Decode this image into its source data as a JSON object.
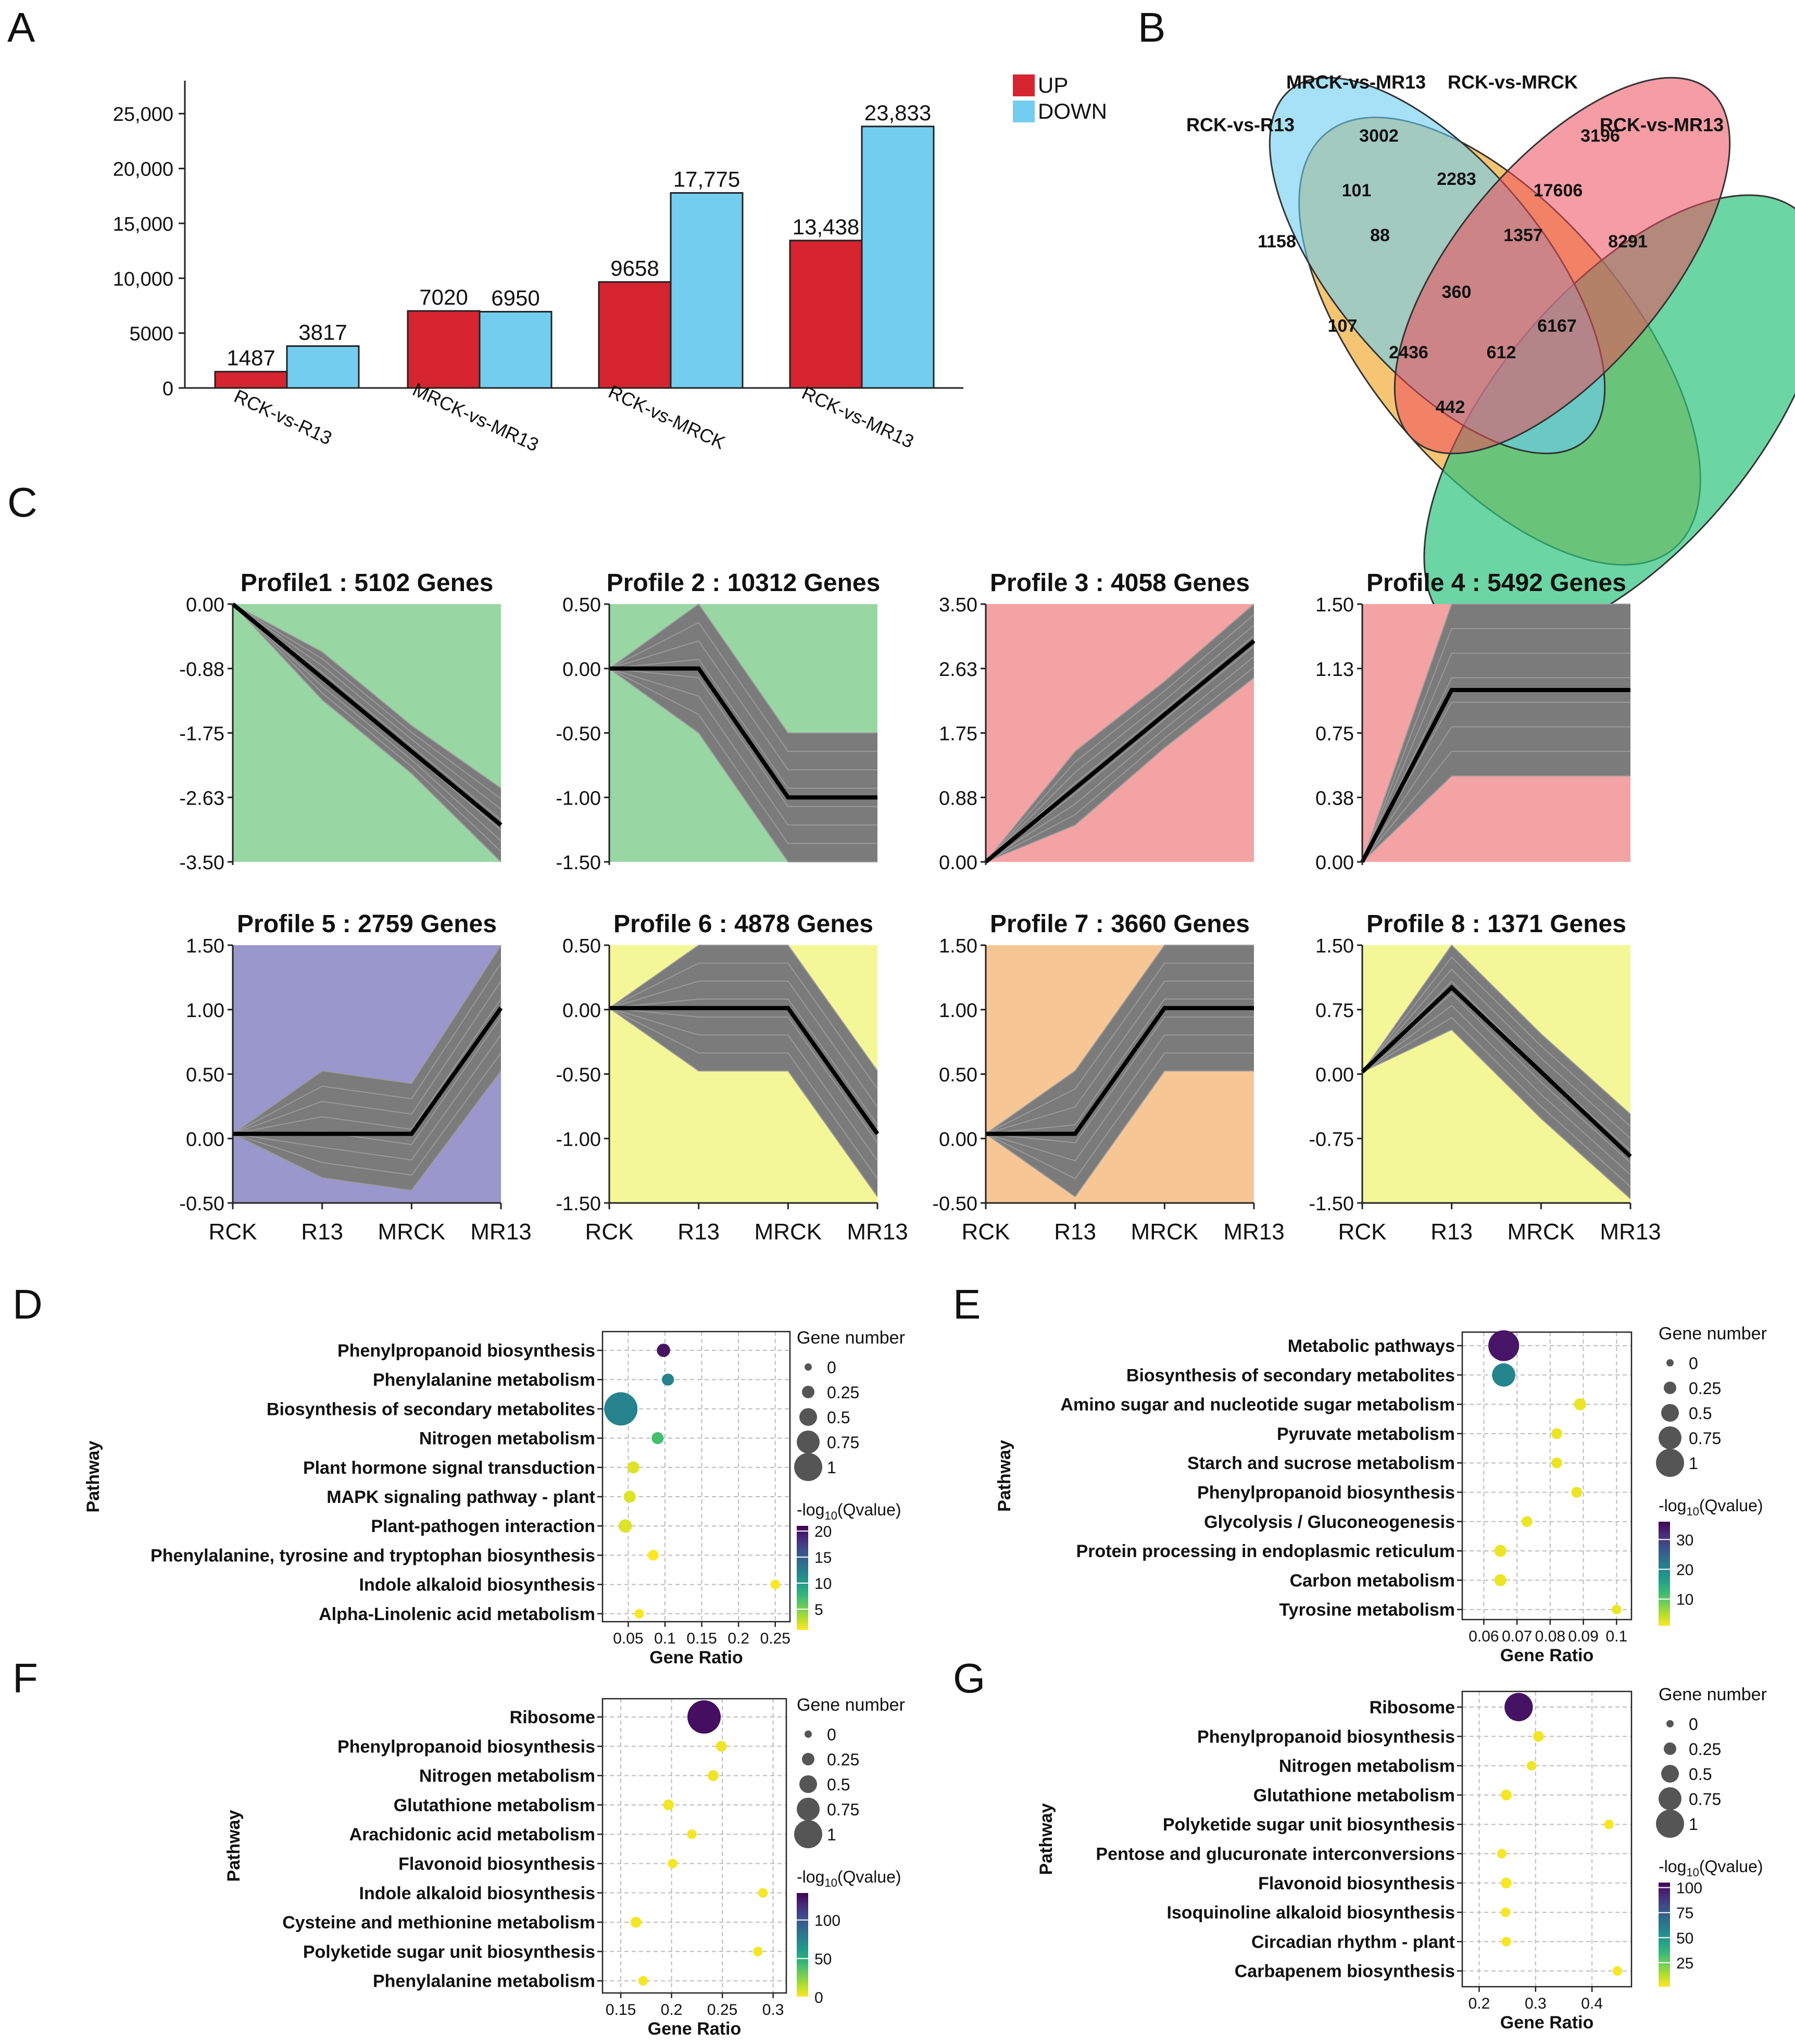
{
  "panel_labels": {
    "A": "A",
    "B": "B",
    "C": "C",
    "D": "D",
    "E": "E",
    "F": "F",
    "G": "G"
  },
  "chart_data": [
    {
      "panel": "A",
      "type": "bar",
      "categories": [
        "RCK-vs-R13",
        "MRCK-vs-MR13",
        "RCK-vs-MRCK",
        "RCK-vs-MR13"
      ],
      "series": [
        {
          "name": "UP",
          "color": "#d62430",
          "values": [
            1487,
            7020,
            9658,
            13438
          ],
          "labels": [
            "1487",
            "7020",
            "9658",
            "13,438"
          ]
        },
        {
          "name": "DOWN",
          "color": "#73cdef",
          "values": [
            3817,
            6950,
            17775,
            23833
          ],
          "labels": [
            "3817",
            "6950",
            "17,775",
            "23,833"
          ]
        }
      ],
      "yticks": [
        0,
        5000,
        10000,
        15000,
        20000,
        25000
      ],
      "ytick_labels": [
        "0",
        "5000",
        "10,000",
        "15,000",
        "20,000",
        "25,000"
      ],
      "ylim": [
        0,
        28000
      ],
      "legend": [
        "UP",
        "DOWN"
      ]
    },
    {
      "panel": "B",
      "type": "venn",
      "sets": [
        "RCK-vs-R13",
        "MRCK-vs-MR13",
        "RCK-vs-MRCK",
        "RCK-vs-MR13"
      ],
      "regions": [
        "3002",
        "3196",
        "1158",
        "101",
        "2283",
        "17606",
        "8291",
        "88",
        "1357",
        "360",
        "107",
        "6167",
        "2436",
        "612",
        "442"
      ]
    },
    {
      "panel": "C",
      "type": "line",
      "x": [
        "RCK",
        "R13",
        "MRCK",
        "MR13"
      ],
      "profiles": [
        {
          "title": "Profile1 : 5102 Genes",
          "bg": "#98d6a4",
          "yticks": [
            "0.00",
            "-0.88",
            "-1.75",
            "-2.63",
            "-3.50"
          ],
          "ymin": -3.5,
          "ymax": 0,
          "mean": [
            0,
            -1,
            -2,
            -3
          ],
          "env_lo": [
            0,
            -1.3,
            -2.3,
            -3.5
          ],
          "env_hi": [
            0,
            -0.65,
            -1.65,
            -2.5
          ]
        },
        {
          "title": "Profile 2 : 10312 Genes",
          "bg": "#98d6a4",
          "yticks": [
            "0.50",
            "0.00",
            "-0.50",
            "-1.00",
            "-1.50"
          ],
          "ymin": -1.5,
          "ymax": 0.5,
          "mean": [
            0,
            0,
            -1,
            -1
          ],
          "env_lo": [
            0,
            -0.5,
            -1.5,
            -1.5
          ],
          "env_hi": [
            0,
            0.5,
            -0.5,
            -0.5
          ]
        },
        {
          "title": "Profile 3 : 4058 Genes",
          "bg": "#f3a3a3",
          "yticks": [
            "3.50",
            "2.63",
            "1.75",
            "0.88",
            "0.00"
          ],
          "ymin": 0,
          "ymax": 3.5,
          "mean": [
            0,
            1,
            2,
            3
          ],
          "env_lo": [
            0,
            0.5,
            1.55,
            2.5
          ],
          "env_hi": [
            0,
            1.5,
            2.45,
            3.5
          ]
        },
        {
          "title": "Profile 4 : 5492 Genes",
          "bg": "#f3a3a3",
          "yticks": [
            "1.50",
            "1.13",
            "0.75",
            "0.38",
            "0.00"
          ],
          "ymin": 0,
          "ymax": 1.5,
          "mean": [
            0,
            1,
            1,
            1
          ],
          "env_lo": [
            0,
            0.5,
            0.5,
            0.5
          ],
          "env_hi": [
            0,
            1.5,
            1.5,
            1.5
          ]
        },
        {
          "title": "Profile 5 : 2759 Genes",
          "bg": "#9a97cc",
          "yticks": [
            "1.50",
            "1.00",
            "0.50",
            "0.00",
            "-0.50"
          ],
          "ymin": -0.55,
          "ymax": 1.5,
          "mean": [
            0,
            0,
            0,
            1
          ],
          "env_lo": [
            0,
            -0.35,
            -0.45,
            0.5
          ],
          "env_hi": [
            0,
            0.5,
            0.4,
            1.5
          ]
        },
        {
          "title": "Profile 6 : 4878 Genes",
          "bg": "#f4f797",
          "yticks": [
            "0.50",
            "0.00",
            "-0.50",
            "-1.00",
            "-1.50"
          ],
          "ymin": -1.55,
          "ymax": 0.5,
          "mean": [
            0,
            0,
            0,
            -1
          ],
          "env_lo": [
            0,
            -0.5,
            -0.5,
            -1.5
          ],
          "env_hi": [
            0,
            0.5,
            0.5,
            -0.5
          ]
        },
        {
          "title": "Profile 7 : 3660 Genes",
          "bg": "#f6c795",
          "yticks": [
            "1.50",
            "1.00",
            "0.50",
            "0.00",
            "-0.50"
          ],
          "ymin": -0.55,
          "ymax": 1.5,
          "mean": [
            0,
            0,
            1,
            1
          ],
          "env_lo": [
            0,
            -0.5,
            0.5,
            0.5
          ],
          "env_hi": [
            0,
            0.5,
            1.5,
            1.5
          ]
        },
        {
          "title": "Profile 8 : 1371 Genes",
          "bg": "#f4f797",
          "yticks": [
            "1.50",
            "0.75",
            "0.00",
            "-0.75",
            "-1.50"
          ],
          "ymin": -1.55,
          "ymax": 1.5,
          "mean": [
            0,
            1,
            0,
            -1
          ],
          "env_lo": [
            0,
            0.5,
            -0.55,
            -1.5
          ],
          "env_hi": [
            0,
            1.5,
            0.45,
            -0.5
          ]
        }
      ]
    },
    {
      "panel": "D",
      "type": "scatter",
      "pathways": [
        "Phenylpropanoid biosynthesis",
        "Phenylalanine metabolism",
        "Biosynthesis of secondary metabolites",
        "Nitrogen metabolism",
        "Plant hormone signal transduction",
        "MAPK signaling pathway - plant",
        "Plant-pathogen interaction",
        "Phenylalanine, tyrosine and tryptophan biosynthesis",
        "Indole alkaloid biosynthesis",
        "Alpha-Linolenic acid metabolism"
      ],
      "gene_ratio": [
        0.098,
        0.104,
        0.04,
        0.09,
        0.057,
        0.052,
        0.046,
        0.084,
        0.25,
        0.065
      ],
      "size": [
        0.2,
        0.15,
        1.0,
        0.15,
        0.15,
        0.15,
        0.2,
        0.1,
        0.05,
        0.05
      ],
      "qvalue": [
        20,
        12,
        12,
        7,
        2,
        2,
        2,
        1,
        1,
        1
      ],
      "xticks": [
        0.05,
        0.1,
        0.15,
        0.2,
        0.25
      ],
      "xtick_labels": [
        "0.05",
        "0.1",
        "0.15",
        "0.2",
        "0.25"
      ],
      "xlim": [
        0.015,
        0.27
      ],
      "xlabel": "Gene Ratio",
      "ylabel": "Pathway",
      "size_title": "Gene number",
      "size_labels": [
        "0",
        "0.25",
        "0.5",
        "0.75",
        "1"
      ],
      "color_title_pre": "-log",
      "color_title_sub": "10",
      "color_title_post": "(Qvalue)",
      "cbar_ticks": [
        5,
        10,
        15,
        20
      ],
      "cbar_labels": [
        "5",
        "10",
        "15",
        "20"
      ],
      "cbar_range": [
        1,
        21
      ]
    },
    {
      "panel": "E",
      "type": "scatter",
      "pathways": [
        "Metabolic pathways",
        "Biosynthesis of secondary metabolites",
        "Amino sugar and nucleotide sugar metabolism",
        "Pyruvate metabolism",
        "Starch and sucrose metabolism",
        "Phenylpropanoid biosynthesis",
        "Glycolysis / Gluconeogenesis",
        "Protein processing in endoplasmic reticulum",
        "Carbon metabolism",
        "Tyrosine metabolism"
      ],
      "gene_ratio": [
        0.066,
        0.066,
        0.089,
        0.082,
        0.082,
        0.088,
        0.073,
        0.065,
        0.065,
        0.1
      ],
      "size": [
        0.9,
        0.6,
        0.15,
        0.1,
        0.1,
        0.1,
        0.1,
        0.15,
        0.15,
        0.05
      ],
      "qvalue": [
        34,
        20,
        2,
        2,
        2,
        2,
        2,
        2,
        2,
        2
      ],
      "xticks": [
        0.06,
        0.07,
        0.08,
        0.09,
        0.1
      ],
      "xtick_labels": [
        "0.06",
        "0.07",
        "0.08",
        "0.09",
        "0.1"
      ],
      "xlim": [
        0.0535,
        0.1045
      ],
      "xlabel": "Gene Ratio",
      "ylabel": "Pathway",
      "size_title": "Gene number",
      "size_labels": [
        "0",
        "0.25",
        "0.5",
        "0.75",
        "1"
      ],
      "color_title_pre": "-log",
      "color_title_sub": "10",
      "color_title_post": "(Qvalue)",
      "cbar_ticks": [
        10,
        20,
        30
      ],
      "cbar_labels": [
        "10",
        "20",
        "30"
      ],
      "cbar_range": [
        1,
        36
      ]
    },
    {
      "panel": "F",
      "type": "scatter",
      "pathways": [
        "Ribosome",
        "Phenylpropanoid biosynthesis",
        "Nitrogen metabolism",
        "Glutathione metabolism",
        "Arachidonic acid metabolism",
        "Flavonoid biosynthesis",
        "Indole alkaloid biosynthesis",
        "Cysteine and methionine metabolism",
        "Polyketide sugar unit biosynthesis",
        "Phenylalanine metabolism"
      ],
      "gene_ratio": [
        0.232,
        0.249,
        0.241,
        0.197,
        0.22,
        0.201,
        0.29,
        0.165,
        0.285,
        0.172
      ],
      "size": [
        1.0,
        0.1,
        0.1,
        0.1,
        0.05,
        0.05,
        0.05,
        0.1,
        0.05,
        0.05
      ],
      "qvalue": [
        130,
        3,
        3,
        2,
        2,
        2,
        2,
        2,
        2,
        2
      ],
      "xticks": [
        0.15,
        0.2,
        0.25,
        0.3
      ],
      "xtick_labels": [
        "0.15",
        "0.2",
        "0.25",
        "0.3"
      ],
      "xlim": [
        0.132,
        0.313
      ],
      "xlabel": "Gene Ratio",
      "ylabel": "Pathway",
      "size_title": "Gene number",
      "size_labels": [
        "0",
        "0.25",
        "0.5",
        "0.75",
        "1"
      ],
      "color_title_pre": "-log",
      "color_title_sub": "10",
      "color_title_post": "(Qvalue)",
      "cbar_ticks": [
        0,
        50,
        100
      ],
      "cbar_labels": [
        "0",
        "50",
        "100"
      ],
      "cbar_range": [
        0,
        135
      ]
    },
    {
      "panel": "G",
      "type": "scatter",
      "pathways": [
        "Ribosome",
        "Phenylpropanoid biosynthesis",
        "Nitrogen metabolism",
        "Glutathione metabolism",
        "Polyketide sugar unit biosynthesis",
        "Pentose and glucuronate interconversions",
        "Flavonoid biosynthesis",
        "Isoquinoline alkaloid biosynthesis",
        "Circadian rhythm - plant",
        "Carbapenem biosynthesis"
      ],
      "gene_ratio": [
        0.27,
        0.305,
        0.293,
        0.248,
        0.43,
        0.24,
        0.248,
        0.247,
        0.248,
        0.445
      ],
      "size": [
        0.8,
        0.1,
        0.05,
        0.1,
        0.05,
        0.05,
        0.1,
        0.05,
        0.05,
        0.05
      ],
      "qvalue": [
        100,
        3,
        3,
        2,
        2,
        2,
        2,
        2,
        2,
        2
      ],
      "xticks": [
        0.2,
        0.3,
        0.4
      ],
      "xtick_labels": [
        "0.2",
        "0.3",
        "0.4"
      ],
      "xlim": [
        0.17,
        0.47
      ],
      "xlabel": "Gene Ratio",
      "ylabel": "Pathway",
      "size_title": "Gene number",
      "size_labels": [
        "0",
        "0.25",
        "0.5",
        "0.75",
        "1"
      ],
      "color_title_pre": "-log",
      "color_title_sub": "10",
      "color_title_post": "(Qvalue)",
      "cbar_ticks": [
        25,
        50,
        75,
        100
      ],
      "cbar_labels": [
        "25",
        "50",
        "75",
        "100"
      ],
      "cbar_range": [
        1,
        105
      ]
    }
  ]
}
